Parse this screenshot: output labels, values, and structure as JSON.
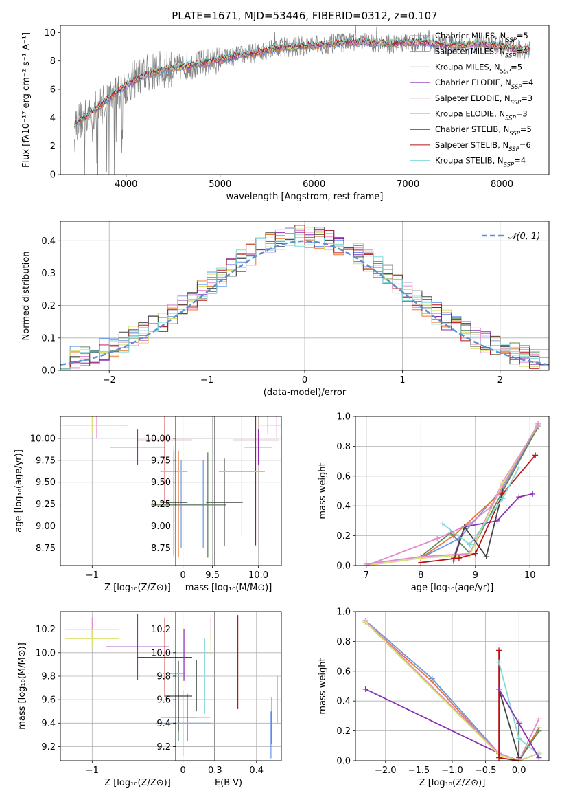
{
  "colors": [
    "#6495ed",
    "#e8772e",
    "#5f8a5f",
    "#8b2fb5",
    "#e28acb",
    "#d9e06b",
    "#444444",
    "#b81414",
    "#80d8d8"
  ],
  "chart_data": [
    {
      "id": "spectrum",
      "type": "line",
      "title": "PLATE=1671, MJD=53446, FIBERID=0312, z=0.107",
      "xlabel": "wavelength [Angstrom, rest frame]",
      "ylabel": "Flux [fλ10⁻¹⁷ erg cm⁻² s⁻¹ A⁻¹]",
      "xlim": [
        3300,
        8500
      ],
      "ylim": [
        0,
        10.5
      ],
      "xticks": [
        4000,
        5000,
        6000,
        7000,
        8000
      ],
      "yticks": [
        0,
        2,
        4,
        6,
        8,
        10
      ],
      "grid": false,
      "legend": "top-right",
      "data_line": {
        "x": [
          3450,
          3600,
          3800,
          4000,
          4200,
          4400,
          4600,
          4800,
          5000,
          5200,
          5400,
          5600,
          5800,
          6000,
          6200,
          6400,
          6600,
          6800,
          7000,
          7200,
          7400,
          7600,
          7800,
          8000,
          8200,
          8300
        ],
        "y": [
          3.6,
          4.1,
          5.3,
          6.3,
          7.1,
          7.4,
          7.6,
          7.8,
          8.1,
          8.4,
          8.6,
          8.9,
          9.0,
          9.1,
          9.2,
          9.3,
          9.3,
          9.2,
          9.3,
          9.3,
          9.1,
          9.1,
          9.2,
          9.0,
          8.8,
          8.8
        ]
      },
      "model_line": {
        "x": [
          3450,
          3600,
          3800,
          4000,
          4200,
          4400,
          4600,
          4800,
          5000,
          5200,
          5400,
          5600,
          5800,
          6000,
          6200,
          6400,
          6600,
          6800,
          7000,
          7200,
          7400,
          7600,
          7800,
          8000,
          8200,
          8300
        ],
        "y": [
          3.6,
          4.2,
          5.3,
          6.3,
          7.0,
          7.4,
          7.6,
          7.8,
          8.1,
          8.4,
          8.6,
          8.9,
          9.0,
          9.1,
          9.2,
          9.3,
          9.3,
          9.2,
          9.3,
          9.3,
          9.1,
          9.1,
          9.2,
          9.0,
          8.8,
          8.8
        ]
      },
      "series": [
        {
          "name": "Chabrier MILES, N",
          "sub": "SSP",
          "suffix": "=5"
        },
        {
          "name": "Salpeter MILES, N",
          "sub": "SSP",
          "suffix": "=4"
        },
        {
          "name": "Kroupa MILES, N",
          "sub": "SSP",
          "suffix": "=5"
        },
        {
          "name": "Chabrier ELODIE, N",
          "sub": "SSP",
          "suffix": "=4"
        },
        {
          "name": "Salpeter ELODIE, N",
          "sub": "SSP",
          "suffix": "=3"
        },
        {
          "name": "Kroupa ELODIE, N",
          "sub": "SSP",
          "suffix": "=3"
        },
        {
          "name": "Chabrier STELIB, N",
          "sub": "SSP",
          "suffix": "=5"
        },
        {
          "name": "Salpeter STELIB, N",
          "sub": "SSP",
          "suffix": "=6"
        },
        {
          "name": "Kroupa STELIB, N",
          "sub": "SSP",
          "suffix": "=4"
        }
      ]
    },
    {
      "id": "residuals",
      "type": "line",
      "xlabel": "(data-model)/error",
      "ylabel": "Normed distribution",
      "xlim": [
        -2.5,
        2.5
      ],
      "ylim": [
        0,
        0.46
      ],
      "xticks": [
        -2,
        -1,
        0,
        1,
        2
      ],
      "yticks": [
        0.0,
        0.1,
        0.2,
        0.3,
        0.4
      ],
      "grid": true,
      "legend": "top-right",
      "gaussian_label": "𝒩(0, 1)"
    },
    {
      "id": "age_vs_z",
      "type": "scatter",
      "xlabel": "Z [log₁₀(Z/Z⊙)]",
      "ylabel": "age  [log₁₀(age/yr)]",
      "xlim": [
        -1.35,
        0.35
      ],
      "ylim": [
        8.55,
        10.25
      ],
      "xticks": [
        -1,
        0
      ],
      "yticks": [
        8.75,
        9.0,
        9.25,
        9.5,
        9.75,
        10.0
      ],
      "grid": true,
      "points": [
        {
          "s": 0,
          "x": -0.02,
          "y": 9.25,
          "xerr": 0.3,
          "yerr": 0.5
        },
        {
          "s": 1,
          "x": -0.05,
          "y": 9.25,
          "xerr": 0.3,
          "yerr": 0.6
        },
        {
          "s": 2,
          "x": -0.1,
          "y": 9.24,
          "xerr": 0.25,
          "yerr": 0.6
        },
        {
          "s": 3,
          "x": -0.5,
          "y": 9.9,
          "xerr": 0.3,
          "yerr": 0.2
        },
        {
          "s": 4,
          "x": -0.95,
          "y": 10.15,
          "xerr": 0.35,
          "yerr": 0.15
        },
        {
          "s": 5,
          "x": -1.0,
          "y": 10.15,
          "xerr": 0.35,
          "yerr": 0.1
        },
        {
          "s": 6,
          "x": -0.1,
          "y": 9.27,
          "xerr": 0.15,
          "yerr": 0.6
        },
        {
          "s": 7,
          "x": -0.2,
          "y": 9.98,
          "xerr": 0.3,
          "yerr": 0.7
        },
        {
          "s": 8,
          "x": -0.1,
          "y": 9.62,
          "xerr": 0.15,
          "yerr": 0.3
        }
      ]
    },
    {
      "id": "age_vs_mass",
      "type": "scatter",
      "xlabel": "mass [log₁₀(M/M⊙)]",
      "ylabel": "",
      "xlim": [
        9.1,
        10.25
      ],
      "ylim": [
        8.55,
        10.25
      ],
      "xticks": [
        9.5,
        10.0
      ],
      "xticklabels": [
        "9.5",
        "10.0"
      ],
      "yticks": [
        8.75,
        9.0,
        9.25,
        9.5,
        9.75,
        10.0
      ],
      "grid": true,
      "points": [
        {
          "s": 0,
          "x": 9.4,
          "y": 9.25,
          "xerr": 0.25,
          "yerr": 0.5
        },
        {
          "s": 1,
          "x": 9.45,
          "y": 9.24,
          "xerr": 0.2,
          "yerr": 0.6
        },
        {
          "s": 2,
          "x": 9.45,
          "y": 9.24,
          "xerr": 0.2,
          "yerr": 0.6
        },
        {
          "s": 3,
          "x": 10.0,
          "y": 9.9,
          "xerr": 0.15,
          "yerr": 0.2
        },
        {
          "s": 4,
          "x": 10.2,
          "y": 10.15,
          "xerr": 0.1,
          "yerr": 0.15
        },
        {
          "s": 5,
          "x": 10.1,
          "y": 10.15,
          "xerr": 0.1,
          "yerr": 0.1
        },
        {
          "s": 6,
          "x": 9.63,
          "y": 9.27,
          "xerr": 0.2,
          "yerr": 0.5
        },
        {
          "s": 7,
          "x": 9.97,
          "y": 9.98,
          "xerr": 0.25,
          "yerr": 1.2
        },
        {
          "s": 8,
          "x": 9.82,
          "y": 9.62,
          "xerr": 0.25,
          "yerr": 0.75
        }
      ]
    },
    {
      "id": "weight_vs_age",
      "type": "line",
      "xlabel": "age  [log₁₀(age/yr)]",
      "ylabel": "mass weight",
      "xlim": [
        6.8,
        10.35
      ],
      "ylim": [
        0,
        1.0
      ],
      "xticks": [
        7,
        8,
        9,
        10
      ],
      "yticks": [
        0.0,
        0.2,
        0.4,
        0.6,
        0.8,
        1.0
      ],
      "grid": true,
      "series": [
        {
          "s": 0,
          "x": [
            7.0,
            8.0,
            8.7,
            9.5,
            10.15
          ],
          "y": [
            0.0,
            0.05,
            0.18,
            0.52,
            0.94
          ]
        },
        {
          "s": 1,
          "x": [
            8.0,
            8.6,
            9.5,
            10.15
          ],
          "y": [
            0.05,
            0.2,
            0.5,
            0.93
          ]
        },
        {
          "s": 2,
          "x": [
            8.0,
            8.55,
            8.9,
            9.5,
            10.15
          ],
          "y": [
            0.06,
            0.22,
            0.08,
            0.5,
            0.93
          ]
        },
        {
          "s": 3,
          "x": [
            8.6,
            8.8,
            9.4,
            9.8,
            10.05
          ],
          "y": [
            0.05,
            0.26,
            0.3,
            0.46,
            0.48
          ]
        },
        {
          "s": 4,
          "x": [
            7.0,
            8.0,
            8.9,
            9.5,
            10.15
          ],
          "y": [
            0.01,
            0.06,
            0.08,
            0.56,
            0.94
          ]
        },
        {
          "s": 5,
          "x": [
            7.0,
            8.0,
            8.9,
            9.5,
            10.15
          ],
          "y": [
            0.0,
            0.05,
            0.07,
            0.55,
            0.94
          ]
        },
        {
          "s": 6,
          "x": [
            8.6,
            8.8,
            9.2,
            9.5
          ],
          "y": [
            0.03,
            0.26,
            0.06,
            0.5
          ]
        },
        {
          "s": 7,
          "x": [
            8.0,
            8.7,
            9.0,
            9.5,
            10.1
          ],
          "y": [
            0.02,
            0.05,
            0.08,
            0.48,
            0.74
          ]
        },
        {
          "s": 8,
          "x": [
            8.4,
            8.9,
            9.5,
            9.8
          ],
          "y": [
            0.28,
            0.14,
            0.45,
            0.66
          ]
        },
        {
          "s": 4,
          "x": [
            7.0,
            8.3,
            8.9,
            9.3,
            10.15
          ],
          "y": [
            0.0,
            0.18,
            0.28,
            0.4,
            0.95
          ]
        }
      ]
    },
    {
      "id": "mass_vs_z",
      "type": "scatter",
      "xlabel": "Z [log₁₀(Z/Z⊙)]",
      "ylabel": "mass [log₁₀(M/M⊙)]",
      "xlim": [
        -1.35,
        0.35
      ],
      "ylim": [
        9.08,
        10.35
      ],
      "xticks": [
        -1,
        0
      ],
      "yticks": [
        9.2,
        9.4,
        9.6,
        9.8,
        10.0,
        10.2
      ],
      "grid": true,
      "points": [
        {
          "s": 0,
          "x": 0.0,
          "y": 9.4,
          "xerr": 0.3,
          "yerr": 0.28
        },
        {
          "s": 1,
          "x": 0.05,
          "y": 9.45,
          "xerr": 0.25,
          "yerr": 0.2
        },
        {
          "s": 2,
          "x": -0.05,
          "y": 9.45,
          "xerr": 0.2,
          "yerr": 0.2
        },
        {
          "s": 3,
          "x": -0.5,
          "y": 10.05,
          "xerr": 0.35,
          "yerr": 0.28
        },
        {
          "s": 4,
          "x": -1.0,
          "y": 10.2,
          "xerr": 0.3,
          "yerr": 0.1
        },
        {
          "s": 5,
          "x": -1.0,
          "y": 10.12,
          "xerr": 0.3,
          "yerr": 0.08
        },
        {
          "s": 6,
          "x": -0.05,
          "y": 9.63,
          "xerr": 0.15,
          "yerr": 0.3
        },
        {
          "s": 7,
          "x": -0.2,
          "y": 9.96,
          "xerr": 0.3,
          "yerr": 0.34
        },
        {
          "s": 8,
          "x": -0.1,
          "y": 9.82,
          "xerr": 0.12,
          "yerr": 0.3
        }
      ]
    },
    {
      "id": "mass_vs_ebv",
      "type": "scatter",
      "xlabel": "E(B-V)",
      "ylabel": "",
      "xlim": [
        0.205,
        0.46
      ],
      "ylim": [
        9.08,
        10.35
      ],
      "xticks": [
        0.3,
        0.4
      ],
      "yticks": [
        9.2,
        9.4,
        9.6,
        9.8,
        10.0,
        10.2
      ],
      "grid": true,
      "points": [
        {
          "s": 0,
          "x": 0.435,
          "y": 9.3,
          "xerr": 0,
          "yerr": 0.2
        },
        {
          "s": 1,
          "x": 0.45,
          "y": 9.6,
          "xerr": 0,
          "yerr": 0.2
        },
        {
          "s": 2,
          "x": 0.437,
          "y": 9.42,
          "xerr": 0,
          "yerr": 0.2
        },
        {
          "s": 3,
          "x": 0.225,
          "y": 9.98,
          "xerr": 0,
          "yerr": 0.22
        },
        {
          "s": 4,
          "x": 0.29,
          "y": 10.2,
          "xerr": 0,
          "yerr": 0.1
        },
        {
          "s": 5,
          "x": 0.29,
          "y": 10.1,
          "xerr": 0,
          "yerr": 0.12
        },
        {
          "s": 6,
          "x": 0.255,
          "y": 9.72,
          "xerr": 0,
          "yerr": 0.22
        },
        {
          "s": 7,
          "x": 0.355,
          "y": 9.92,
          "xerr": 0,
          "yerr": 0.4
        },
        {
          "s": 8,
          "x": 0.275,
          "y": 9.8,
          "xerr": 0,
          "yerr": 0.32
        }
      ]
    },
    {
      "id": "weight_vs_z",
      "type": "line",
      "xlabel": "Z [log₁₀(Z/Z⊙)]",
      "ylabel": "mass weight",
      "xlim": [
        -2.45,
        0.45
      ],
      "ylim": [
        0,
        1.0
      ],
      "xticks": [
        -2.0,
        -1.5,
        -1.0,
        -0.5,
        0.0
      ],
      "yticks": [
        0.0,
        0.2,
        0.4,
        0.6,
        0.8,
        1.0
      ],
      "grid": true,
      "series": [
        {
          "s": 0,
          "x": [
            -2.3,
            -1.3,
            -0.3,
            0.0,
            0.3
          ],
          "y": [
            0.94,
            0.55,
            0.05,
            0.0,
            0.2
          ]
        },
        {
          "s": 1,
          "x": [
            -2.3,
            -1.3,
            -0.3,
            0.0,
            0.3
          ],
          "y": [
            0.93,
            0.53,
            0.04,
            0.0,
            0.22
          ]
        },
        {
          "s": 2,
          "x": [
            -2.3,
            -0.3,
            0.0,
            0.3
          ],
          "y": [
            0.93,
            0.05,
            0.0,
            0.2
          ]
        },
        {
          "s": 3,
          "x": [
            -2.3,
            -0.3,
            0.0,
            0.3
          ],
          "y": [
            0.48,
            0.05,
            0.0,
            0.05
          ]
        },
        {
          "s": 4,
          "x": [
            -2.3,
            -0.3,
            0.0,
            0.3
          ],
          "y": [
            0.94,
            0.05,
            0.0,
            0.28
          ]
        },
        {
          "s": 5,
          "x": [
            -2.3,
            -0.3,
            0.0,
            0.3
          ],
          "y": [
            0.93,
            0.04,
            0.0,
            0.05
          ]
        },
        {
          "s": 6,
          "x": [
            -0.3,
            0.0,
            0.0
          ],
          "y": [
            0.48,
            0.02,
            0.26
          ]
        },
        {
          "s": 7,
          "x": [
            -0.3,
            -0.3,
            0.0
          ],
          "y": [
            0.74,
            0.02,
            0.0
          ]
        },
        {
          "s": 8,
          "x": [
            -0.3,
            0.0,
            0.3
          ],
          "y": [
            0.66,
            0.15,
            0.04
          ]
        },
        {
          "s": 3,
          "x": [
            -0.3,
            0.0,
            0.3
          ],
          "y": [
            0.48,
            0.25,
            0.02
          ]
        }
      ]
    }
  ]
}
